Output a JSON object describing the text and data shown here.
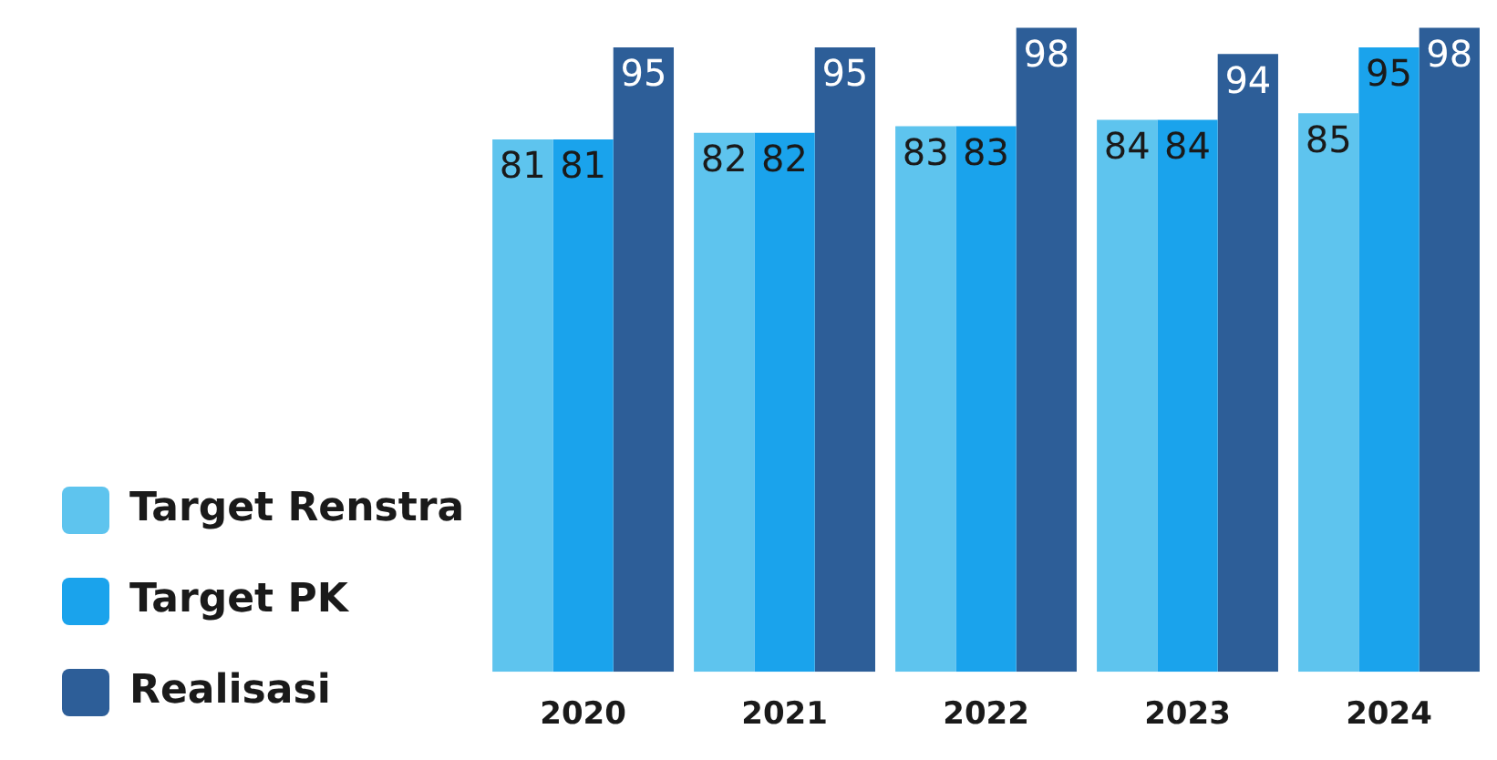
{
  "chart_data": {
    "type": "bar",
    "categories": [
      "2020",
      "2021",
      "2022",
      "2023",
      "2024"
    ],
    "series": [
      {
        "name": "Target Renstra",
        "color": "#5ec4ee",
        "values": [
          81,
          82,
          83,
          84,
          85
        ]
      },
      {
        "name": "Target PK",
        "color": "#1aa3ec",
        "values": [
          81,
          82,
          83,
          84,
          95
        ]
      },
      {
        "name": "Realisasi",
        "color": "#2d5e98",
        "values": [
          95,
          95,
          98,
          94,
          98
        ]
      }
    ],
    "tick_labels": "x",
    "grid": false,
    "legend": "bottom left",
    "data_labels": true
  }
}
